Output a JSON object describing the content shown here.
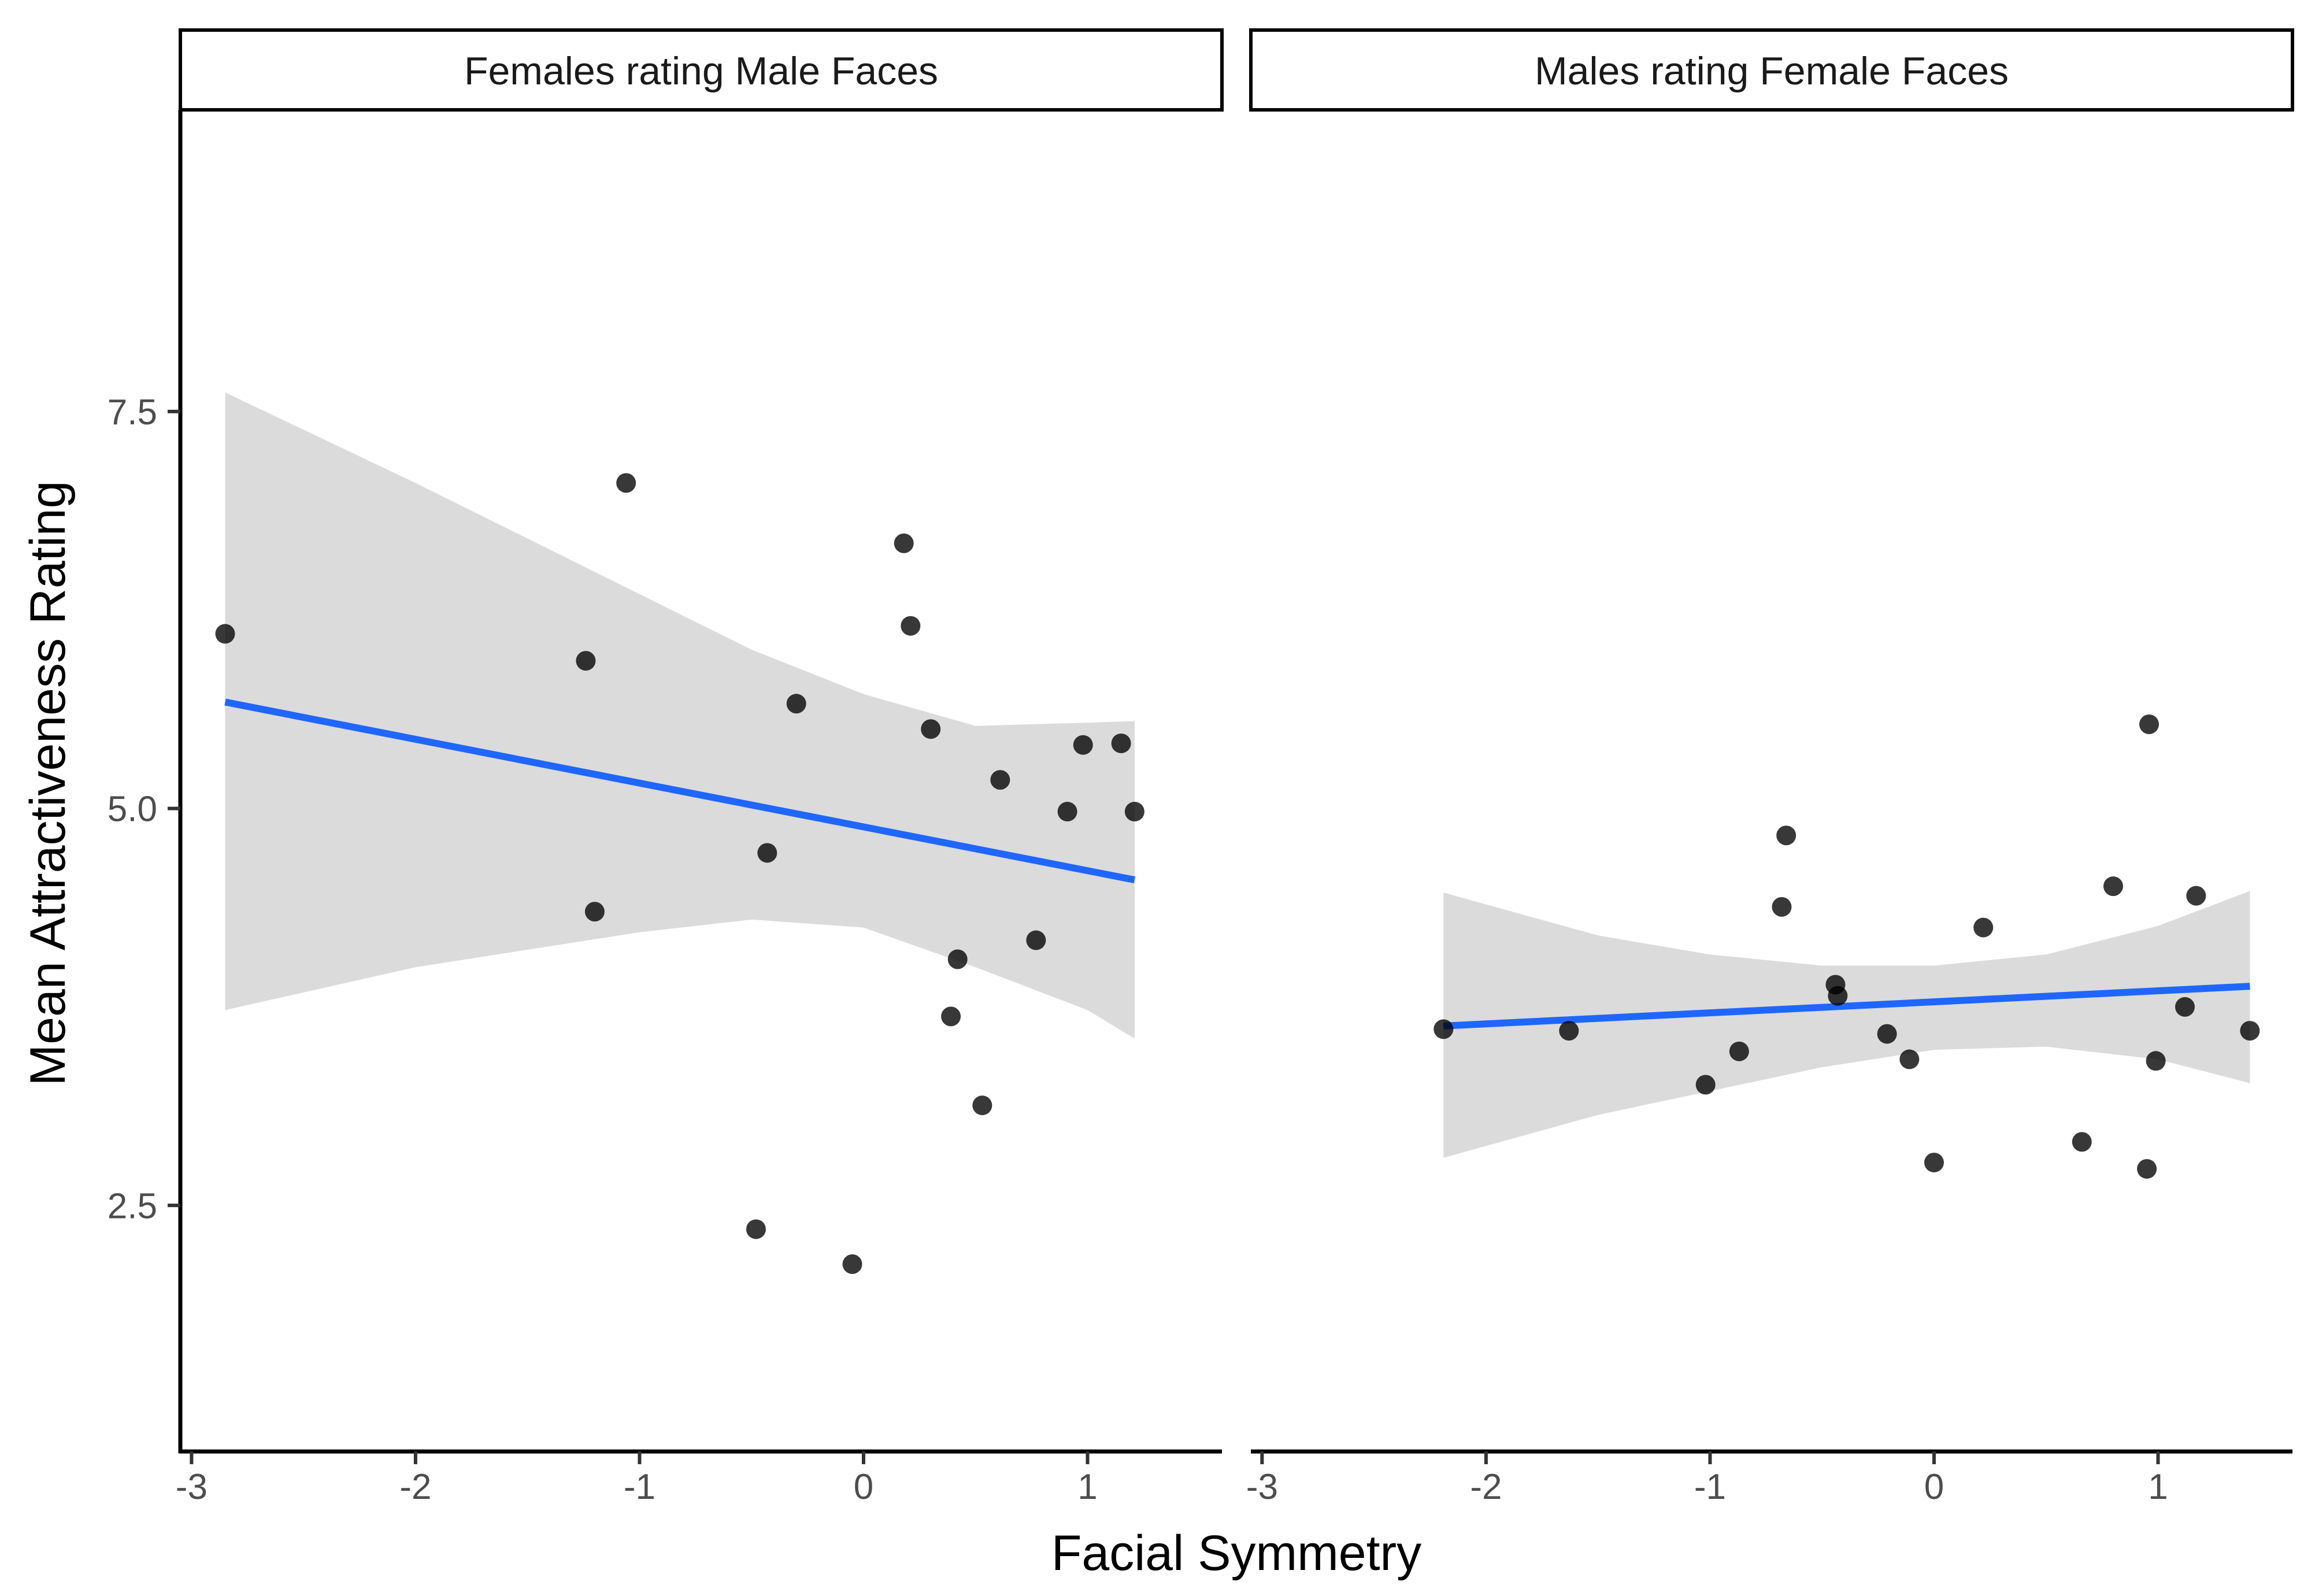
{
  "chart_data": {
    "type": "scatter",
    "xlabel": "Facial Symmetry",
    "ylabel": "Mean Attractiveness Rating",
    "xlim": [
      -3.05,
      1.6
    ],
    "ylim": [
      0.95,
      9.4
    ],
    "x_ticks": [
      -3,
      -2,
      -1,
      0,
      1
    ],
    "x_tick_labels": [
      "-3",
      "-2",
      "-1",
      "0",
      "1"
    ],
    "y_ticks": [
      2.5,
      5.0,
      7.5
    ],
    "y_tick_labels": [
      "2.5",
      "5.0",
      "7.5"
    ],
    "colors": {
      "points": "#000000",
      "line": "#1f66ff",
      "band": "#d9d9d9",
      "axis": "#000000"
    },
    "panels": [
      {
        "title": "Females rating Male Faces",
        "points": [
          {
            "x": -2.85,
            "y": 6.1
          },
          {
            "x": -1.24,
            "y": 5.93
          },
          {
            "x": -1.2,
            "y": 4.35
          },
          {
            "x": -1.06,
            "y": 7.05
          },
          {
            "x": -0.48,
            "y": 2.35
          },
          {
            "x": -0.43,
            "y": 4.72
          },
          {
            "x": -0.3,
            "y": 5.66
          },
          {
            "x": -0.05,
            "y": 2.13
          },
          {
            "x": 0.18,
            "y": 6.67
          },
          {
            "x": 0.21,
            "y": 6.15
          },
          {
            "x": 0.3,
            "y": 5.5
          },
          {
            "x": 0.39,
            "y": 3.69
          },
          {
            "x": 0.42,
            "y": 4.05
          },
          {
            "x": 0.53,
            "y": 3.13
          },
          {
            "x": 0.61,
            "y": 5.18
          },
          {
            "x": 0.77,
            "y": 4.17
          },
          {
            "x": 0.91,
            "y": 4.98
          },
          {
            "x": 0.98,
            "y": 5.4
          },
          {
            "x": 1.15,
            "y": 5.41
          },
          {
            "x": 1.21,
            "y": 4.98
          }
        ],
        "fit": {
          "x": [
            -2.85,
            1.21
          ],
          "y": [
            5.67,
            4.55
          ]
        },
        "ci_band": {
          "x": [
            -2.85,
            -2.0,
            -1.0,
            -0.5,
            0.0,
            0.5,
            1.0,
            1.21
          ],
          "upper": [
            7.62,
            7.05,
            6.35,
            6.0,
            5.72,
            5.52,
            5.54,
            5.55
          ],
          "lower": [
            3.73,
            4.0,
            4.22,
            4.3,
            4.25,
            4.0,
            3.73,
            3.55
          ]
        }
      },
      {
        "title": "Males rating Female Faces",
        "points": [
          {
            "x": -2.19,
            "y": 3.61
          },
          {
            "x": -1.63,
            "y": 3.6
          },
          {
            "x": -1.02,
            "y": 3.26
          },
          {
            "x": -0.87,
            "y": 3.47
          },
          {
            "x": -0.68,
            "y": 4.38
          },
          {
            "x": -0.66,
            "y": 4.83
          },
          {
            "x": -0.44,
            "y": 3.89
          },
          {
            "x": -0.43,
            "y": 3.82
          },
          {
            "x": -0.21,
            "y": 3.58
          },
          {
            "x": -0.11,
            "y": 3.42
          },
          {
            "x": 0.0,
            "y": 2.77
          },
          {
            "x": 0.22,
            "y": 4.25
          },
          {
            "x": 0.66,
            "y": 2.9
          },
          {
            "x": 0.8,
            "y": 4.51
          },
          {
            "x": 0.95,
            "y": 2.73
          },
          {
            "x": 0.96,
            "y": 5.53
          },
          {
            "x": 0.99,
            "y": 3.41
          },
          {
            "x": 1.12,
            "y": 3.75
          },
          {
            "x": 1.17,
            "y": 4.45
          },
          {
            "x": 1.41,
            "y": 3.6
          }
        ],
        "fit": {
          "x": [
            -2.19,
            1.41
          ],
          "y": [
            3.63,
            3.88
          ]
        },
        "ci_band": {
          "x": [
            -2.19,
            -1.5,
            -1.0,
            -0.5,
            0.0,
            0.5,
            1.0,
            1.41
          ],
          "upper": [
            4.47,
            4.2,
            4.08,
            4.01,
            4.01,
            4.08,
            4.26,
            4.48
          ],
          "lower": [
            2.8,
            3.07,
            3.22,
            3.37,
            3.48,
            3.5,
            3.42,
            3.27
          ]
        }
      }
    ]
  }
}
